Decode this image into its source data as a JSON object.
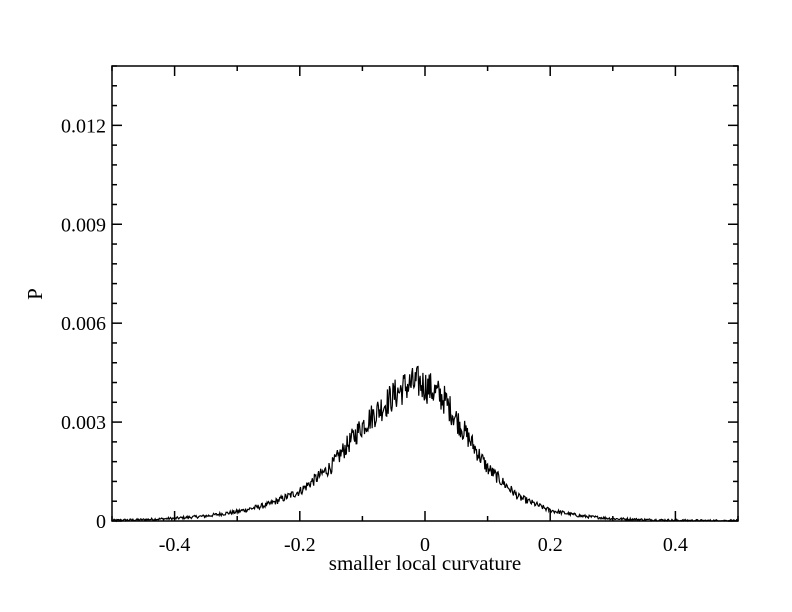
{
  "chart_data": {
    "type": "line",
    "title": "",
    "xlabel": "smaller local curvature",
    "ylabel": "P",
    "xlim": [
      -0.5,
      0.5
    ],
    "ylim": [
      0,
      0.0138
    ],
    "x_ticks": [
      -0.4,
      -0.2,
      0,
      0.2,
      0.4
    ],
    "x_tick_labels": [
      "-0.4",
      "-0.2",
      "0",
      "0.2",
      "0.4"
    ],
    "y_ticks": [
      0,
      0.003,
      0.006,
      0.009,
      0.012
    ],
    "y_tick_labels": [
      "0",
      "0.003",
      "0.006",
      "0.009",
      "0.012"
    ],
    "grid": false,
    "legend": "none",
    "line_color": "#000000",
    "series": [
      {
        "x": [
          -0.5,
          -0.45,
          -0.4,
          -0.35,
          -0.3,
          -0.25,
          -0.2,
          -0.15,
          -0.1,
          -0.05,
          -0.03,
          -0.01,
          0,
          0.01,
          0.03,
          0.05,
          0.1,
          0.15,
          0.2,
          0.25,
          0.3,
          0.35,
          0.4,
          0.45,
          0.5
        ],
        "values": [
          2e-05,
          4e-05,
          8e-05,
          0.00015,
          0.00028,
          0.0005,
          0.0009,
          0.00165,
          0.0029,
          0.0038,
          0.0041,
          0.0042,
          0.0041,
          0.004,
          0.0037,
          0.0031,
          0.0016,
          0.00072,
          0.00032,
          0.00015,
          7e-05,
          4e-05,
          2e-05,
          1e-05,
          1e-05
        ]
      }
    ]
  }
}
